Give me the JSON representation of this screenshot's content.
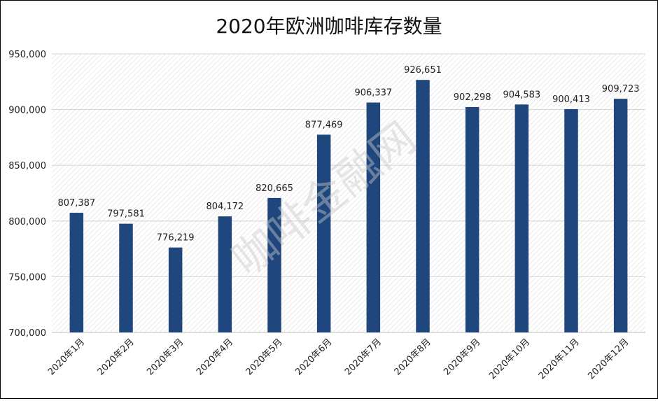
{
  "watermark": "咖啡金融网",
  "chart_data": {
    "type": "bar",
    "title": "2020年欧洲咖啡库存数量",
    "xlabel": "",
    "ylabel": "",
    "categories": [
      "2020年1月",
      "2020年2月",
      "2020年3月",
      "2020年4月",
      "2020年5月",
      "2020年6月",
      "2020年7月",
      "2020年8月",
      "2020年9月",
      "2020年10月",
      "2020年11月",
      "2020年12月"
    ],
    "values": [
      807387,
      797581,
      776219,
      804172,
      820665,
      877469,
      906337,
      926651,
      902298,
      904583,
      900413,
      909723
    ],
    "value_labels": [
      "807,387",
      "797,581",
      "776,219",
      "804,172",
      "820,665",
      "877,469",
      "906,337",
      "926,651",
      "902,298",
      "904,583",
      "900,413",
      "909,723"
    ],
    "ylim": [
      700000,
      950000
    ],
    "yticks": [
      700000,
      750000,
      800000,
      850000,
      900000,
      950000
    ],
    "ytick_labels": [
      "700,000",
      "750,000",
      "800,000",
      "850,000",
      "900,000",
      "950,000"
    ],
    "bar_color": "#1F467D",
    "grid": true,
    "legend": "none"
  }
}
